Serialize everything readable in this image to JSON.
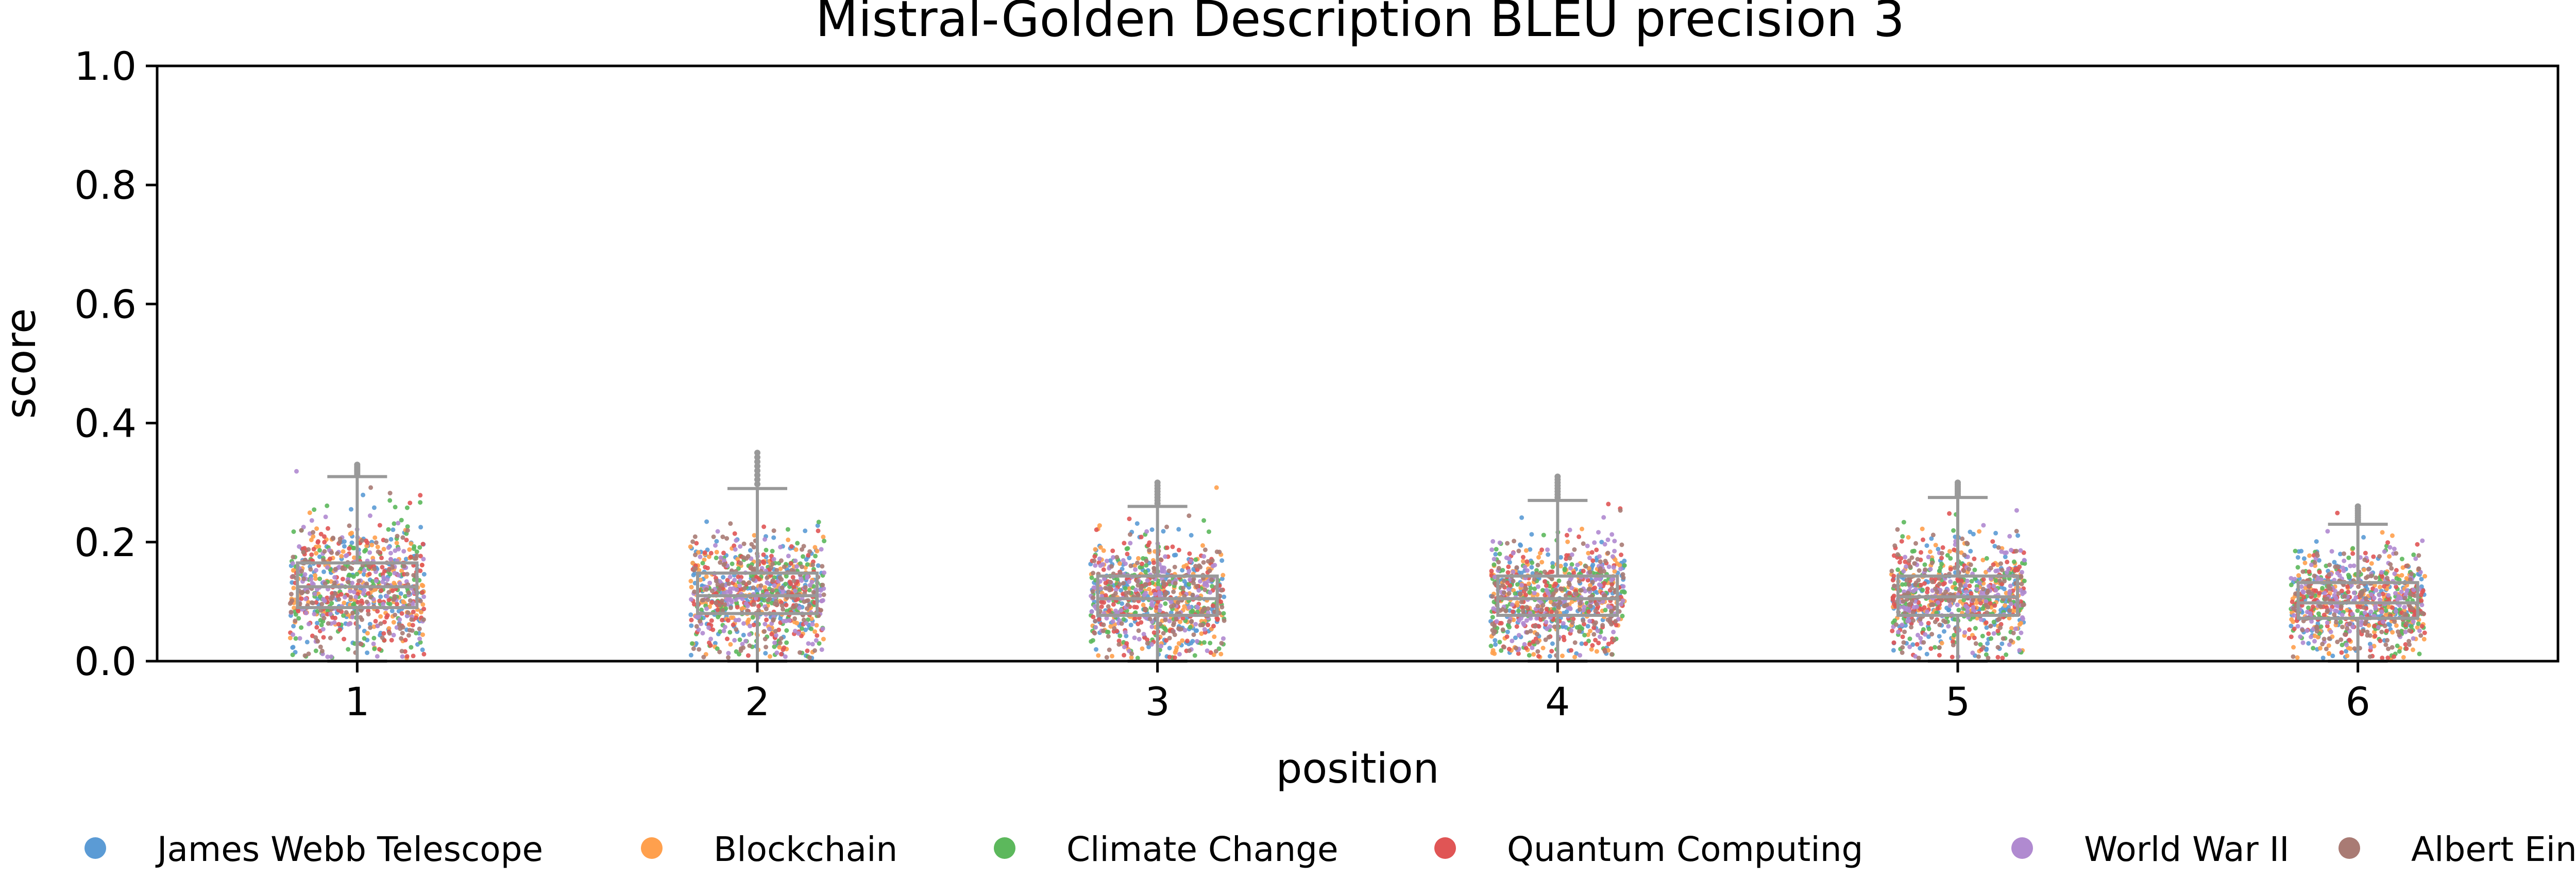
{
  "chart_data": {
    "type": "box-strip",
    "title": "Mistral-Golden Description BLEU precision 3",
    "xlabel": "position",
    "ylabel": "score",
    "ylim": [
      0,
      1.0
    ],
    "yticks": [
      "0.0",
      "0.2",
      "0.4",
      "0.6",
      "0.8",
      "1.0"
    ],
    "categories": [
      "1",
      "2",
      "3",
      "4",
      "5",
      "6"
    ],
    "grid": false,
    "legend_position": "bottom",
    "legend": [
      {
        "name": "James Webb Telescope",
        "color": "#5b9bd5"
      },
      {
        "name": "Blockchain",
        "color": "#ffa04d"
      },
      {
        "name": "Climate Change",
        "color": "#5cb85c"
      },
      {
        "name": "Quantum Computing",
        "color": "#e05555"
      },
      {
        "name": "World War II",
        "color": "#b08ad0"
      },
      {
        "name": "Albert Einstein",
        "color": "#a97b74"
      }
    ],
    "boxes": [
      {
        "position": "1",
        "whisker_low": 0.0,
        "q1": 0.09,
        "median": 0.125,
        "q3": 0.165,
        "whisker_high": 0.31,
        "max": 0.33
      },
      {
        "position": "2",
        "whisker_low": 0.0,
        "q1": 0.08,
        "median": 0.11,
        "q3": 0.148,
        "whisker_high": 0.29,
        "max": 0.35
      },
      {
        "position": "3",
        "whisker_low": 0.0,
        "q1": 0.077,
        "median": 0.105,
        "q3": 0.143,
        "whisker_high": 0.26,
        "max": 0.3
      },
      {
        "position": "4",
        "whisker_low": 0.0,
        "q1": 0.077,
        "median": 0.105,
        "q3": 0.143,
        "whisker_high": 0.27,
        "max": 0.31
      },
      {
        "position": "5",
        "whisker_low": 0.0,
        "q1": 0.077,
        "median": 0.108,
        "q3": 0.143,
        "whisker_high": 0.275,
        "max": 0.3
      },
      {
        "position": "6",
        "whisker_low": 0.0,
        "q1": 0.072,
        "median": 0.098,
        "q3": 0.132,
        "whisker_high": 0.23,
        "max": 0.26
      }
    ],
    "box_color": "#999999"
  }
}
